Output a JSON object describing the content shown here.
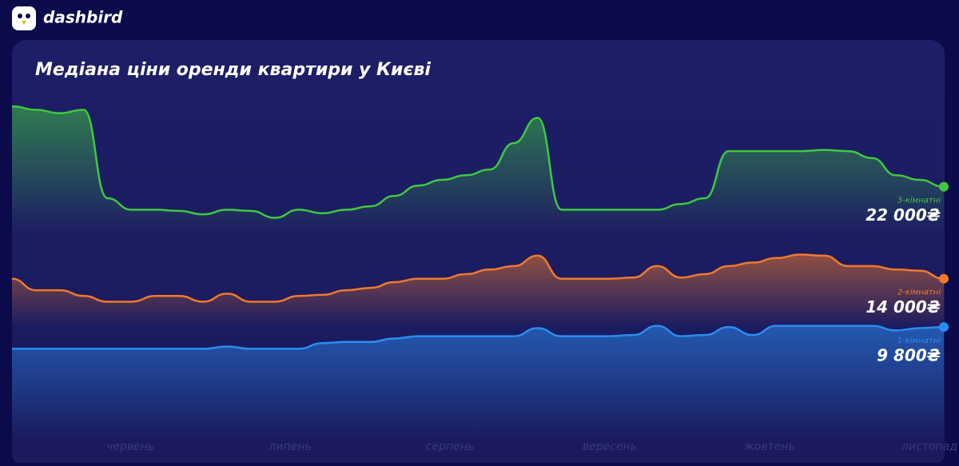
{
  "brand": "dashbird",
  "chart_data": {
    "type": "line",
    "title": "Медіана ціни оренди квартири у Києві",
    "month_labels": [
      "червень",
      "липень",
      "серпень",
      "вересень",
      "жовтень",
      "листопад"
    ],
    "series": [
      {
        "name": "3-кімнатні",
        "color": "#3ec93e",
        "values": [
          29000,
          28700,
          28400,
          28700,
          21000,
          20000,
          20000,
          19900,
          19600,
          20000,
          19900,
          19300,
          20000,
          19700,
          20000,
          20300,
          21200,
          22100,
          22600,
          23000,
          23500,
          25800,
          28000,
          20000,
          20000,
          20000,
          20000,
          20000,
          20500,
          21000,
          25100,
          25100,
          25100,
          25100,
          25200,
          25100,
          24500,
          23000,
          22600,
          22000
        ],
        "value_labels": [
          null,
          null,
          null,
          null,
          null,
          null,
          null,
          null,
          null,
          null,
          null,
          null,
          null,
          null,
          null,
          null,
          null,
          null,
          null,
          null,
          null,
          null,
          null,
          null,
          null,
          null,
          null,
          null,
          null,
          null,
          null,
          null,
          null,
          null,
          null,
          null,
          null,
          null,
          null,
          "22 000₴"
        ]
      },
      {
        "name": "2-кімнатні",
        "color": "#f07a2a",
        "values": [
          14000,
          13000,
          13000,
          12500,
          12000,
          12000,
          12500,
          12500,
          12000,
          12700,
          12000,
          12000,
          12500,
          12600,
          13000,
          13200,
          13700,
          14000,
          14000,
          14400,
          14800,
          15100,
          16000,
          14000,
          14000,
          14000,
          14100,
          15100,
          14100,
          14400,
          15100,
          15400,
          15800,
          16100,
          16000,
          15100,
          15100,
          14800,
          14700,
          14000
        ],
        "value_labels": [
          null,
          null,
          null,
          null,
          null,
          null,
          null,
          null,
          null,
          null,
          null,
          null,
          null,
          null,
          null,
          null,
          null,
          null,
          null,
          null,
          null,
          null,
          null,
          null,
          null,
          null,
          null,
          null,
          null,
          null,
          null,
          null,
          null,
          null,
          null,
          null,
          null,
          null,
          null,
          "14 000₴"
        ]
      },
      {
        "name": "1-кімнатні",
        "color": "#2a8cf0",
        "values": [
          7900,
          7900,
          7900,
          7900,
          7900,
          7900,
          7900,
          7900,
          7900,
          8100,
          7900,
          7900,
          7900,
          8400,
          8500,
          8500,
          8800,
          9000,
          9000,
          9000,
          9000,
          9000,
          9700,
          9000,
          9000,
          9000,
          9100,
          9900,
          9000,
          9100,
          9800,
          9100,
          9900,
          9900,
          9900,
          9900,
          9900,
          9500,
          9700,
          9800
        ],
        "value_labels": [
          null,
          null,
          null,
          null,
          null,
          null,
          null,
          null,
          null,
          null,
          null,
          null,
          null,
          null,
          null,
          null,
          null,
          null,
          null,
          null,
          null,
          null,
          null,
          null,
          null,
          null,
          null,
          null,
          null,
          null,
          null,
          null,
          null,
          null,
          null,
          null,
          null,
          null,
          null,
          "9 800₴"
        ]
      }
    ]
  }
}
